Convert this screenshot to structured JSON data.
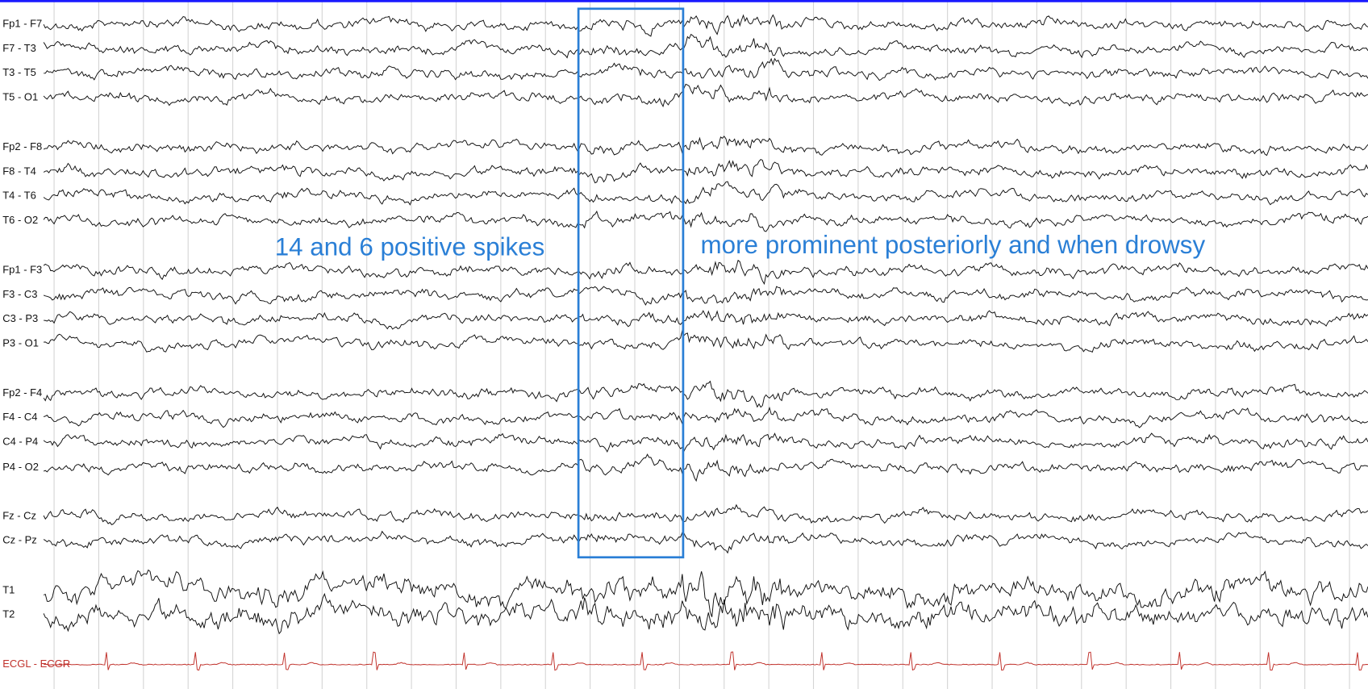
{
  "channels": [
    "Fp1 - F7",
    "F7 - T3",
    "T3 - T5",
    "T5 - O1",
    "Fp2 - F8",
    "F8 - T4",
    "T4 - T6",
    "T6 - O2",
    "Fp1 - F3",
    "F3 - C3",
    "C3 - P3",
    "P3 - O1",
    "Fp2 - F4",
    "F4 - C4",
    "C4 - P4",
    "P4 - O2",
    "Fz - Cz",
    "Cz - Pz",
    "T1",
    "T2",
    "ECGL - ECGR"
  ],
  "annotations": [
    "14 and 6 positive spikes",
    "more prominent posteriorly and when drowsy"
  ]
}
